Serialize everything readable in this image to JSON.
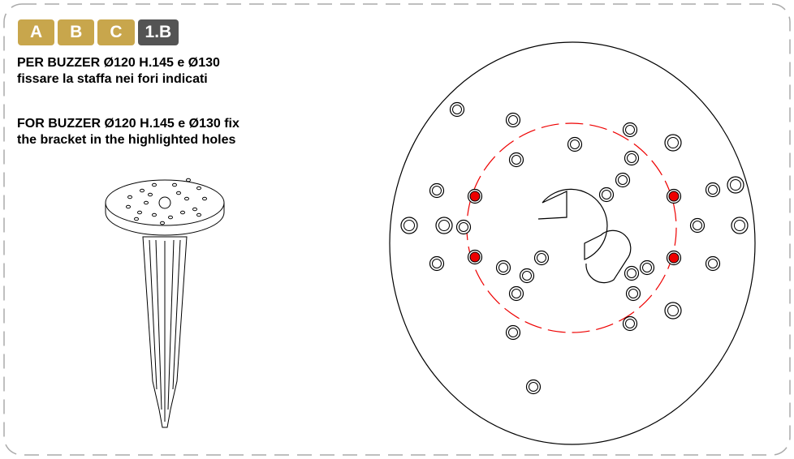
{
  "tabs": [
    "A",
    "B",
    "C",
    "1.B"
  ],
  "instructions": {
    "it": [
      "PER BUZZER Ø120 H.145 e Ø130",
      "fissare la staffa nei fori indicati"
    ],
    "en": [
      "FOR BUZZER Ø120 H.145 e Ø130 fix",
      "the bracket in the highlighted holes"
    ]
  }
}
